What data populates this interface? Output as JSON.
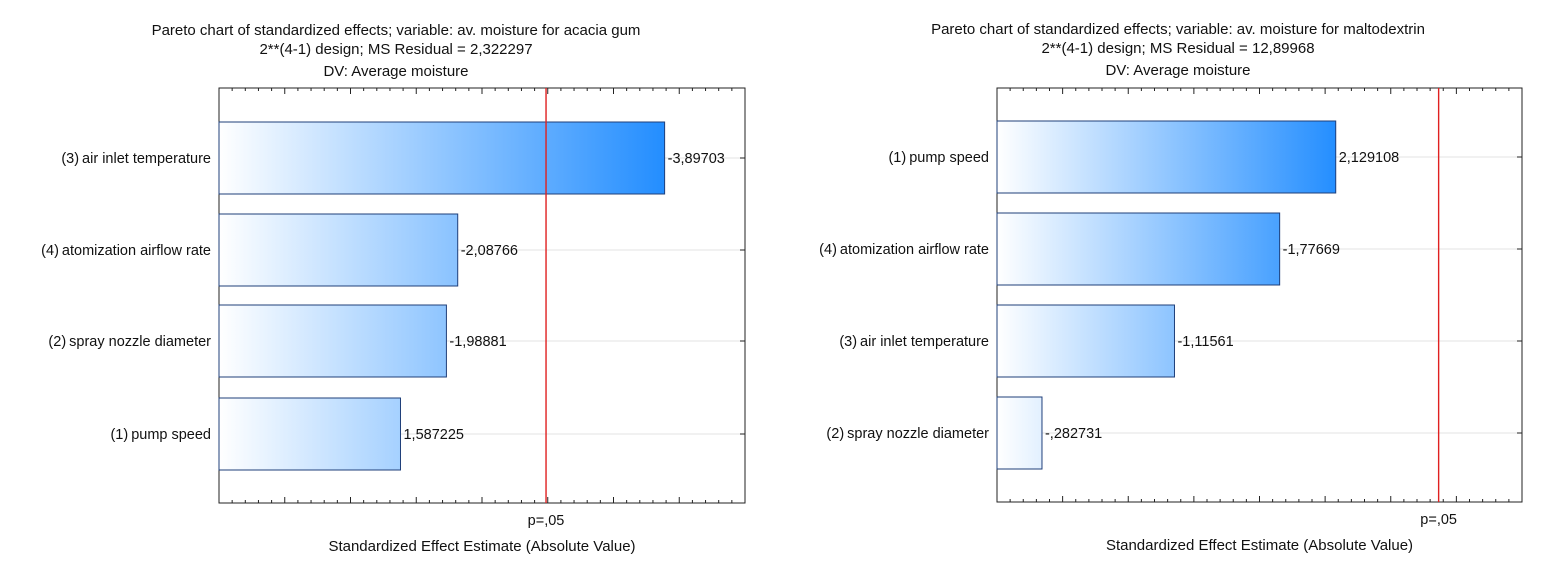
{
  "chart_data": [
    {
      "type": "bar",
      "orientation": "horizontal",
      "title": "Pareto chart of standardized effects; variable: av. moisture for acacia gum",
      "subtitle": "2**(4-1) design; MS Residual = 2,322297",
      "subtitle2": "DV: Average moisture",
      "xlabel": "Standardized Effect Estimate (Absolute Value)",
      "ylabel": "",
      "xlim": [
        0,
        4.6
      ],
      "threshold": {
        "label": "p=,05",
        "value": 2.86
      },
      "bars": [
        {
          "num": "(3)",
          "name": "air inlet temperature",
          "value": 3.89703,
          "label": "-3,89703"
        },
        {
          "num": "(4)",
          "name": "atomization airflow rate",
          "value": 2.08766,
          "label": "-2,08766"
        },
        {
          "num": "(2)",
          "name": "spray nozzle diameter",
          "value": 1.98881,
          "label": "-1,98881"
        },
        {
          "num": "(1)",
          "name": "pump speed",
          "value": 1.587225,
          "label": "1,587225"
        }
      ]
    },
    {
      "type": "bar",
      "orientation": "horizontal",
      "title": "Pareto chart of standardized effects; variable: av. moisture for maltodextrin",
      "subtitle": "2**(4-1) design; MS Residual = 12,89968",
      "subtitle2": "DV: Average moisture",
      "xlabel": "Standardized Effect Estimate (Absolute Value)",
      "ylabel": "",
      "xlim": [
        0,
        3.3
      ],
      "threshold": {
        "label": "p=,05",
        "value": 2.776
      },
      "bars": [
        {
          "num": "(1)",
          "name": "pump speed",
          "value": 2.129108,
          "label": "2,129108"
        },
        {
          "num": "(4)",
          "name": "atomization airflow rate",
          "value": 1.77669,
          "label": "-1,77669"
        },
        {
          "num": "(3)",
          "name": "air inlet temperature",
          "value": 1.11561,
          "label": "-1,11561"
        },
        {
          "num": "(2)",
          "name": "spray nozzle diameter",
          "value": 0.282731,
          "label": "-,282731"
        }
      ]
    }
  ],
  "colors": {
    "bar_start": "#ffffff",
    "bar_end": "#1e8bff",
    "bar_stroke": "#1f3f7a",
    "threshold": "#e02020",
    "grid": "#e3e3e3",
    "axis": "#222222"
  }
}
